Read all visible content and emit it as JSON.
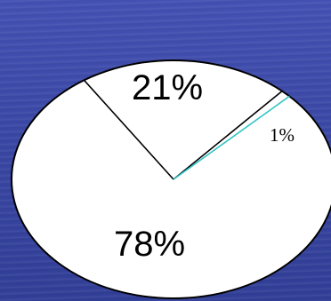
{
  "chart_data": {
    "type": "pie",
    "slices": [
      {
        "label": "21%",
        "value": 21
      },
      {
        "label": "1%",
        "value": 1
      },
      {
        "label": "78%",
        "value": 78
      }
    ],
    "legend": "none"
  },
  "colors": {
    "background": "#3d4aa8",
    "pie_fill": "#ffffff",
    "outline": "#000000",
    "highlight_edge": "#33c4c4"
  }
}
